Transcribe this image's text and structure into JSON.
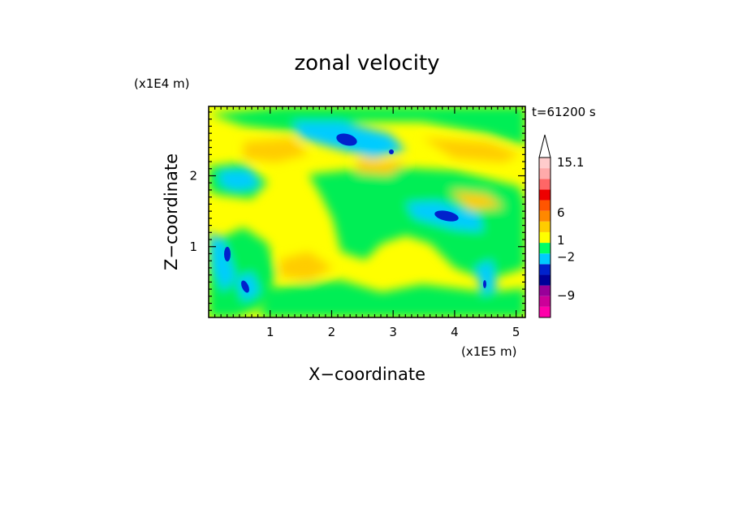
{
  "chart_data": {
    "type": "heatmap",
    "title": "zonal velocity",
    "xlabel": "X−coordinate",
    "ylabel": "Z−coordinate",
    "x_unit": "(x1E5 m)",
    "y_unit": "(x1E4 m)",
    "time_label": "t=61200 s",
    "xlim": [
      0,
      5.15
    ],
    "ylim": [
      0,
      2.98
    ],
    "x_ticks": [
      1,
      2,
      3,
      4,
      5
    ],
    "y_ticks": [
      1,
      2
    ],
    "colorbar": {
      "colors": [
        "#ff00aa",
        "#cc0099",
        "#990099",
        "#000099",
        "#0022cc",
        "#00ccff",
        "#00ff66",
        "#ffff00",
        "#ffcc00",
        "#ff8800",
        "#ff5500",
        "#ee0000",
        "#ff6666",
        "#ffaaaa",
        "#ffcccc"
      ],
      "labels": [
        {
          "text": "15.1",
          "value": 15.1
        },
        {
          "text": "6",
          "value": 6
        },
        {
          "text": "1",
          "value": 1
        },
        {
          "text": "−2",
          "value": -2
        },
        {
          "text": "−9",
          "value": -9
        }
      ],
      "extend_top": true
    },
    "field_regions": [
      {
        "level": "-2",
        "color": "#00ff66",
        "x": [
          0.9,
          4.6
        ],
        "z": [
          0.4,
          2.3
        ]
      },
      {
        "level": "-4",
        "color": "#00ccff",
        "x": [
          1.8,
          2.8
        ],
        "z": [
          2.3,
          2.7
        ]
      },
      {
        "level": "-8",
        "color": "#0022cc",
        "x": [
          2.1,
          2.5
        ],
        "z": [
          2.4,
          2.6
        ]
      },
      {
        "level": "-8",
        "color": "#0022cc",
        "x": [
          3.6,
          4.0
        ],
        "z": [
          1.4,
          1.6
        ]
      },
      {
        "level": "-8",
        "color": "#0022cc",
        "x": [
          0.2,
          0.4
        ],
        "z": [
          0.8,
          1.0
        ]
      },
      {
        "level": "1",
        "color": "#ffcc00",
        "x": [
          0.0,
          5.15
        ],
        "z": [
          0.0,
          2.98
        ]
      }
    ]
  }
}
